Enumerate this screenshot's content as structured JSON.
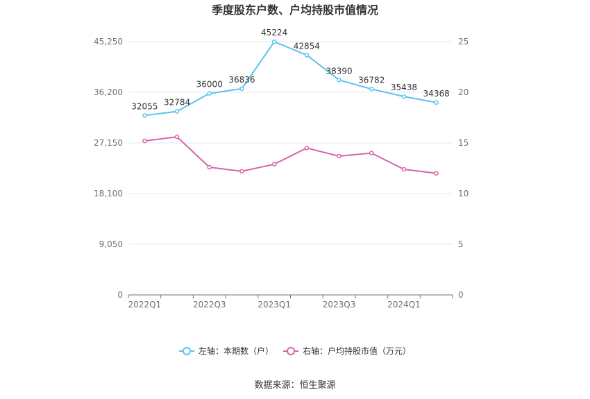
{
  "chart_data": {
    "type": "line",
    "title": "季度股东户数、户均持股市值情况",
    "categories": [
      "2022Q1",
      "2022Q2",
      "2022Q3",
      "2022Q4",
      "2023Q1",
      "2023Q2",
      "2023Q3",
      "2023Q4",
      "2024Q1",
      "2024Q2"
    ],
    "x_tick_labels": [
      "2022Q1",
      "2022Q3",
      "2023Q1",
      "2023Q3",
      "2024Q1"
    ],
    "left_axis": {
      "ticks": [
        "0",
        "9,050",
        "18,100",
        "27,150",
        "36,200",
        "45,250"
      ],
      "range": [
        0,
        45250
      ]
    },
    "right_axis": {
      "ticks": [
        "0",
        "5",
        "10",
        "15",
        "20",
        "25"
      ],
      "range": [
        0,
        25
      ]
    },
    "series": [
      {
        "name": "左轴：本期数（户）",
        "axis": "left",
        "color": "#5bc2ef",
        "values": [
          32055,
          32784,
          36000,
          36836,
          45224,
          42854,
          38390,
          36782,
          35438,
          34368
        ],
        "labels": [
          "32055",
          "32784",
          "36000",
          "36836",
          "45224",
          "42854",
          "38390",
          "36782",
          "35438",
          "34368"
        ]
      },
      {
        "name": "右轴：户均持股市值（万元）",
        "axis": "right",
        "color": "#d862a8",
        "values": [
          15.2,
          15.6,
          12.6,
          12.2,
          12.9,
          14.5,
          13.7,
          14.0,
          12.4,
          12.0
        ]
      }
    ],
    "grid": true,
    "legend_position": "bottom-center"
  },
  "footer": {
    "source": "数据来源：恒生聚源"
  }
}
